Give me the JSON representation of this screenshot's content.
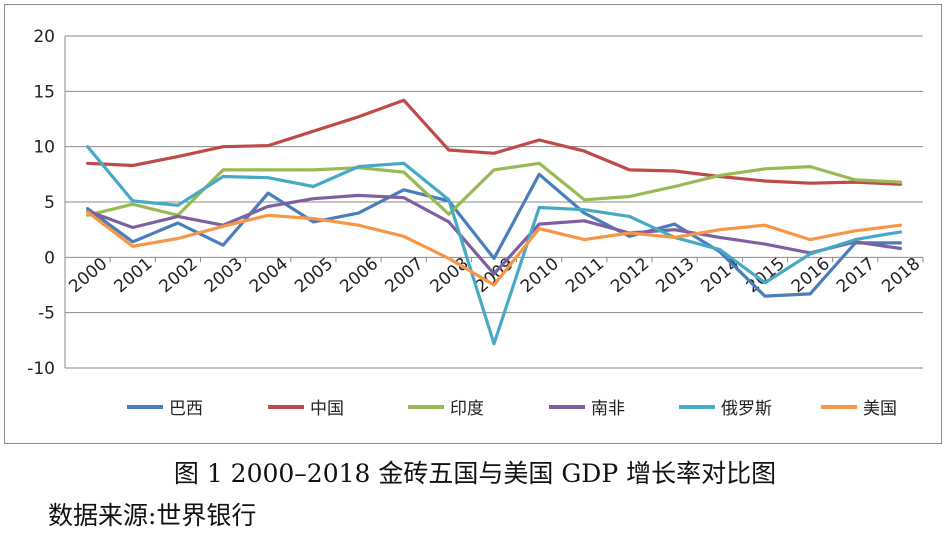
{
  "caption": "图 1 2000–2018 金砖五国与美国 GDP 增长率对比图",
  "source": "数据来源:世界银行",
  "chart_data": {
    "type": "line",
    "title": "",
    "xlabel": "",
    "ylabel": "",
    "ylim": [
      -10,
      20
    ],
    "yticks": [
      -10,
      -5,
      0,
      5,
      10,
      15,
      20
    ],
    "grid": true,
    "legend_position": "bottom",
    "categories": [
      "2000",
      "2001",
      "2002",
      "2003",
      "2004",
      "2005",
      "2006",
      "2007",
      "2008",
      "2009",
      "2010",
      "2011",
      "2012",
      "2013",
      "2014",
      "2015",
      "2016",
      "2017",
      "2018"
    ],
    "series": [
      {
        "name": "巴西",
        "color": "#4a7ebb",
        "values": [
          4.4,
          1.4,
          3.1,
          1.1,
          5.8,
          3.2,
          4.0,
          6.1,
          5.1,
          -0.1,
          7.5,
          4.0,
          1.9,
          3.0,
          0.5,
          -3.5,
          -3.3,
          1.3,
          1.3
        ]
      },
      {
        "name": "中国",
        "color": "#be4b48",
        "values": [
          8.5,
          8.3,
          9.1,
          10.0,
          10.1,
          11.4,
          12.7,
          14.2,
          9.7,
          9.4,
          10.6,
          9.6,
          7.9,
          7.8,
          7.3,
          6.9,
          6.7,
          6.8,
          6.6
        ]
      },
      {
        "name": "印度",
        "color": "#98b954",
        "values": [
          3.8,
          4.8,
          3.8,
          7.9,
          7.9,
          7.9,
          8.1,
          7.7,
          3.9,
          7.9,
          8.5,
          5.2,
          5.5,
          6.4,
          7.4,
          8.0,
          8.2,
          7.0,
          6.8
        ]
      },
      {
        "name": "南非",
        "color": "#7d60a0",
        "values": [
          4.2,
          2.7,
          3.7,
          2.9,
          4.6,
          5.3,
          5.6,
          5.4,
          3.2,
          -1.5,
          3.0,
          3.3,
          2.2,
          2.5,
          1.8,
          1.2,
          0.4,
          1.4,
          0.8
        ]
      },
      {
        "name": "俄罗斯",
        "color": "#46aac5",
        "values": [
          10.0,
          5.1,
          4.7,
          7.3,
          7.2,
          6.4,
          8.2,
          8.5,
          5.2,
          -7.8,
          4.5,
          4.3,
          3.7,
          1.8,
          0.7,
          -2.3,
          0.3,
          1.6,
          2.3
        ]
      },
      {
        "name": "美国",
        "color": "#f79646",
        "values": [
          4.1,
          1.0,
          1.7,
          2.8,
          3.8,
          3.5,
          2.9,
          1.9,
          -0.1,
          -2.5,
          2.6,
          1.6,
          2.2,
          1.8,
          2.5,
          2.9,
          1.6,
          2.4,
          2.9
        ]
      }
    ]
  }
}
